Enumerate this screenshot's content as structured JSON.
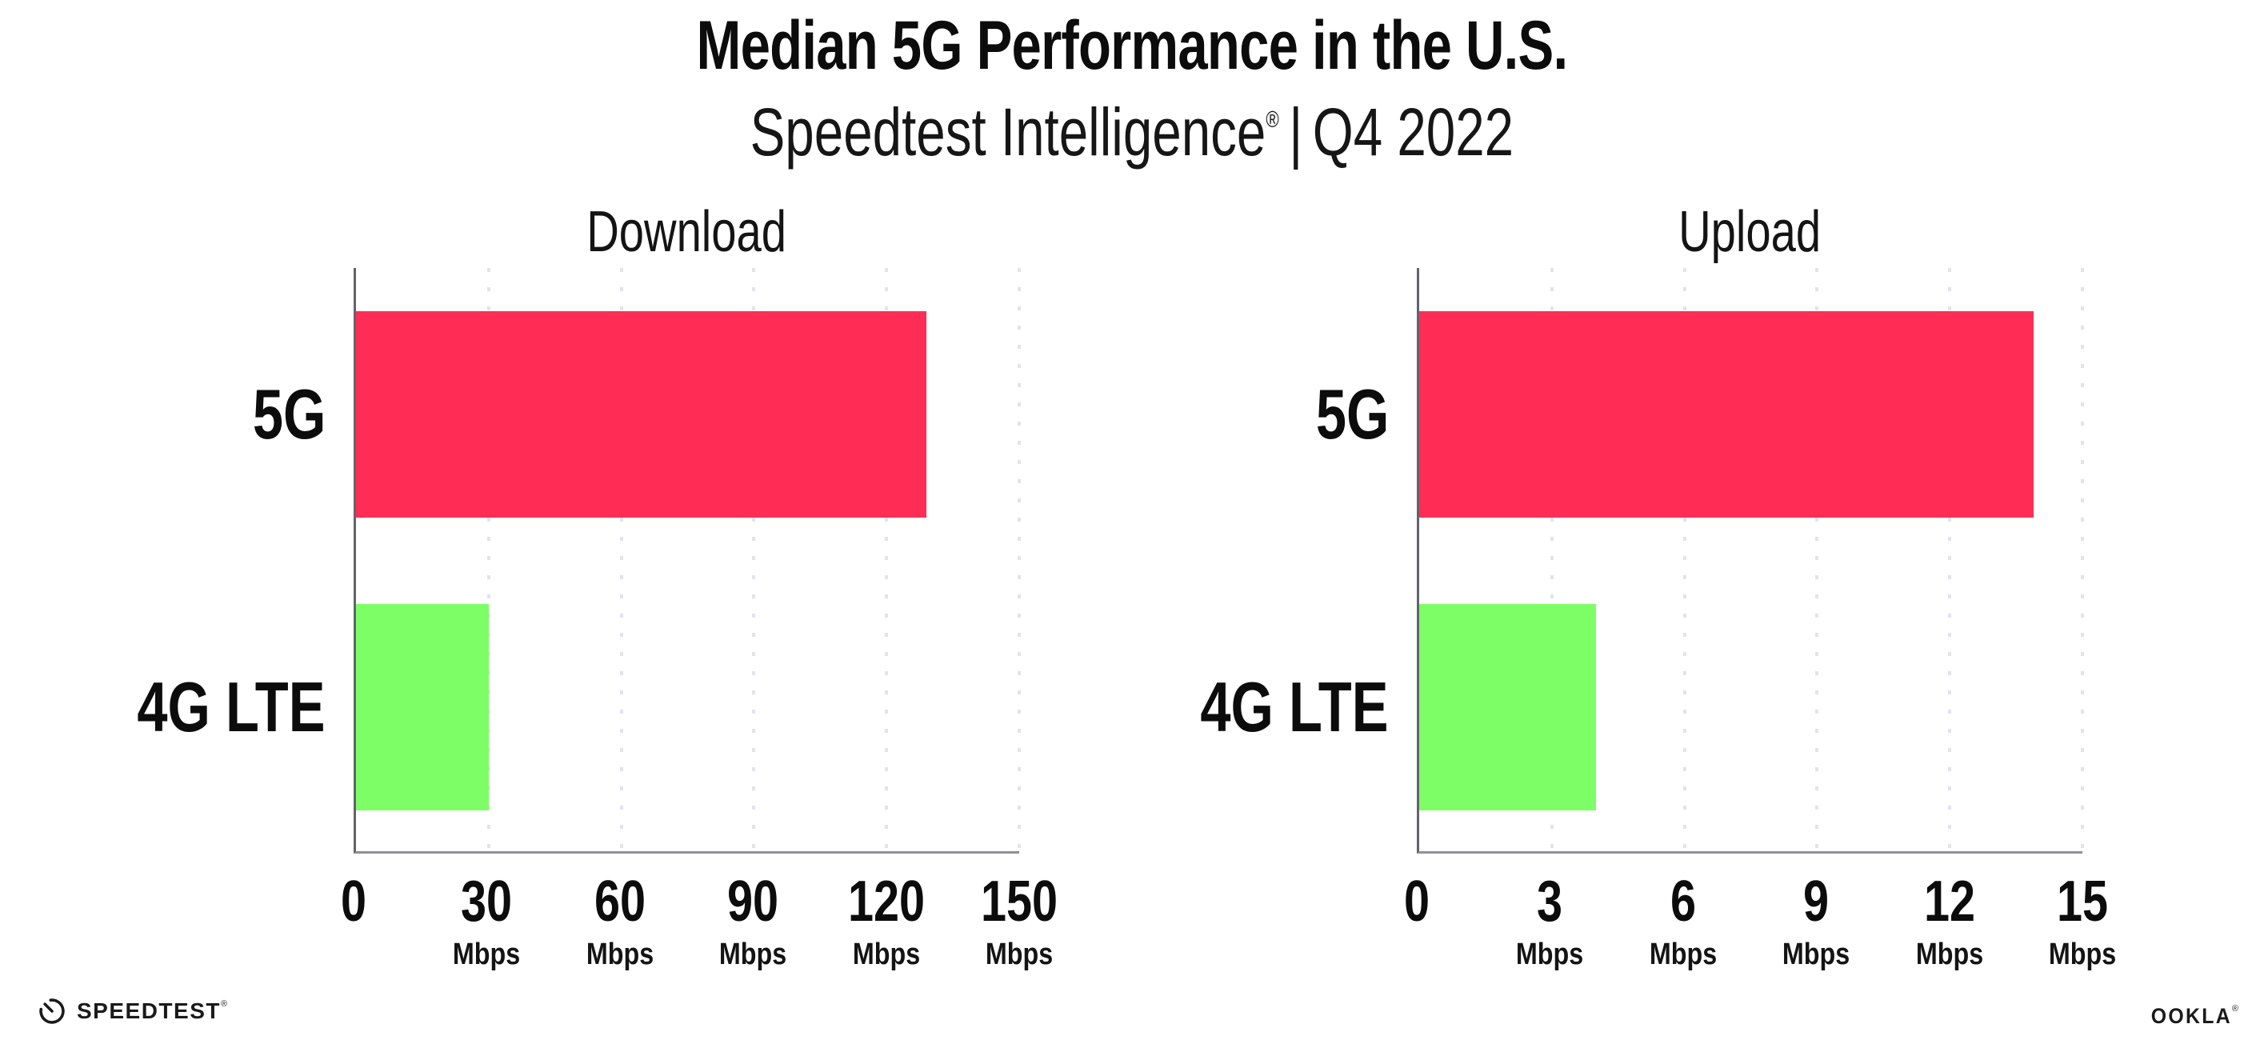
{
  "header": {
    "title": "Median 5G Performance in the U.S.",
    "subtitle_brand": "Speedtest Intelligence",
    "subtitle_reg": "®",
    "subtitle_sep": "|",
    "subtitle_period": "Q4 2022"
  },
  "chart_data": [
    {
      "type": "bar",
      "orientation": "horizontal",
      "title": "Download",
      "categories": [
        "5G",
        "4G LTE"
      ],
      "values": [
        129,
        30
      ],
      "unit": "Mbps",
      "xlim": [
        0,
        150
      ],
      "xticks": [
        0,
        30,
        60,
        90,
        120,
        150
      ],
      "xtick_labels": [
        "0",
        "30",
        "60",
        "90",
        "120",
        "150"
      ],
      "bar_colors": [
        "#ff2d55",
        "#7dfe66"
      ],
      "grid": "dotted-vertical",
      "legend": "none"
    },
    {
      "type": "bar",
      "orientation": "horizontal",
      "title": "Upload",
      "categories": [
        "5G",
        "4G LTE"
      ],
      "values": [
        13.9,
        4
      ],
      "unit": "Mbps",
      "xlim": [
        0,
        15
      ],
      "xticks": [
        0,
        3,
        6,
        9,
        12,
        15
      ],
      "xtick_labels": [
        "0",
        "3",
        "6",
        "9",
        "12",
        "15"
      ],
      "bar_colors": [
        "#ff2d55",
        "#7dfe66"
      ],
      "grid": "dotted-vertical",
      "legend": "none"
    }
  ],
  "footer": {
    "speedtest": {
      "brand": "SPEEDTEST",
      "reg": "®"
    },
    "ookla": {
      "brand": "OOKLA",
      "reg": "®"
    }
  },
  "colors": {
    "bar_5g": "#ff2d55",
    "bar_4g_lte": "#7dfe66",
    "axis": "#90909a",
    "gridline": "#e3e3ed",
    "text": "#111111",
    "background": "#ffffff"
  }
}
